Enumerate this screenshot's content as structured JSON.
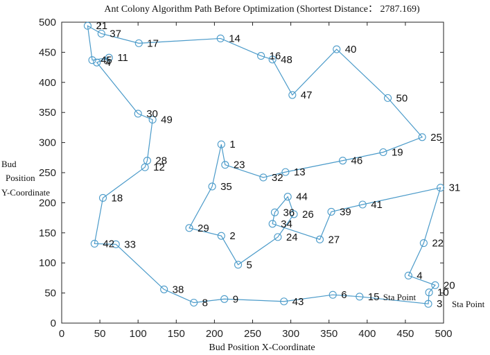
{
  "chart_data": {
    "type": "line",
    "title": "Ant Colony Algorithm Path Before Optimization (Shortest Distance： 2787.169)",
    "xlabel": "Bud Position X-Coordinate",
    "ylabel_lines": [
      "Bud",
      "Position",
      "Y-Coordinate"
    ],
    "xlim": [
      0,
      500
    ],
    "ylim": [
      0,
      500
    ],
    "xticks": [
      "0",
      "50",
      "100",
      "150",
      "200",
      "250",
      "300",
      "350",
      "400",
      "450",
      "500"
    ],
    "yticks": [
      "0",
      "50",
      "100",
      "150",
      "200",
      "250",
      "300",
      "350",
      "400",
      "450",
      "500"
    ],
    "grid": false,
    "line_color": "#4a9ac9",
    "points": [
      {
        "label": "1",
        "x": 209,
        "y": 297
      },
      {
        "label": "23",
        "x": 214,
        "y": 263
      },
      {
        "label": "32",
        "x": 264,
        "y": 242
      },
      {
        "label": "13",
        "x": 293,
        "y": 251
      },
      {
        "label": "46",
        "x": 368,
        "y": 270
      },
      {
        "label": "19",
        "x": 421,
        "y": 284
      },
      {
        "label": "25",
        "x": 472,
        "y": 309
      },
      {
        "label": "50",
        "x": 427,
        "y": 374
      },
      {
        "label": "40",
        "x": 360,
        "y": 455
      },
      {
        "label": "47",
        "x": 302,
        "y": 379
      },
      {
        "label": "48",
        "x": 276,
        "y": 438
      },
      {
        "label": "16",
        "x": 261,
        "y": 444
      },
      {
        "label": "14",
        "x": 208,
        "y": 473
      },
      {
        "label": "17",
        "x": 101,
        "y": 465
      },
      {
        "label": "37",
        "x": 52,
        "y": 481
      },
      {
        "label": "21",
        "x": 34,
        "y": 494
      },
      {
        "label": "45",
        "x": 40,
        "y": 437
      },
      {
        "label": "11",
        "x": 62,
        "y": 441
      },
      {
        "label": "4",
        "x": 46,
        "y": 433
      },
      {
        "label": "30",
        "x": 100,
        "y": 348
      },
      {
        "label": "49",
        "x": 119,
        "y": 338
      },
      {
        "label": "28",
        "x": 112,
        "y": 270
      },
      {
        "label": "12",
        "x": 109,
        "y": 259
      },
      {
        "label": "18",
        "x": 54,
        "y": 208
      },
      {
        "label": "42",
        "x": 43,
        "y": 132
      },
      {
        "label": "33",
        "x": 71,
        "y": 131
      },
      {
        "label": "38",
        "x": 134,
        "y": 56
      },
      {
        "label": "8",
        "x": 173,
        "y": 34
      },
      {
        "label": "9",
        "x": 213,
        "y": 40
      },
      {
        "label": "43",
        "x": 291,
        "y": 36
      },
      {
        "label": "6",
        "x": 355,
        "y": 47
      },
      {
        "label": "15",
        "x": 390,
        "y": 44
      },
      {
        "label": "3",
        "x": 480,
        "y": 32
      },
      {
        "label": "10",
        "x": 481,
        "y": 51
      },
      {
        "label": "20",
        "x": 489,
        "y": 63
      },
      {
        "label": "4",
        "x": 454,
        "y": 79
      },
      {
        "label": "22",
        "x": 474,
        "y": 133
      },
      {
        "label": "31",
        "x": 496,
        "y": 225
      },
      {
        "label": "41",
        "x": 394,
        "y": 197
      },
      {
        "label": "39",
        "x": 353,
        "y": 185
      },
      {
        "label": "27",
        "x": 338,
        "y": 139
      },
      {
        "label": "34",
        "x": 276,
        "y": 165
      },
      {
        "label": "36",
        "x": 279,
        "y": 184
      },
      {
        "label": "44",
        "x": 296,
        "y": 210
      },
      {
        "label": "26",
        "x": 304,
        "y": 181
      },
      {
        "label": "24",
        "x": 283,
        "y": 143
      },
      {
        "label": "5",
        "x": 231,
        "y": 97
      },
      {
        "label": "2",
        "x": 209,
        "y": 145
      },
      {
        "label": "29",
        "x": 167,
        "y": 158
      },
      {
        "label": "35",
        "x": 197,
        "y": 227
      },
      {
        "label": "1",
        "x": 209,
        "y": 297
      }
    ],
    "annotations": [
      {
        "text": "Sta Point",
        "near": "15"
      },
      {
        "text": "Sta Point",
        "near": "3"
      }
    ]
  }
}
